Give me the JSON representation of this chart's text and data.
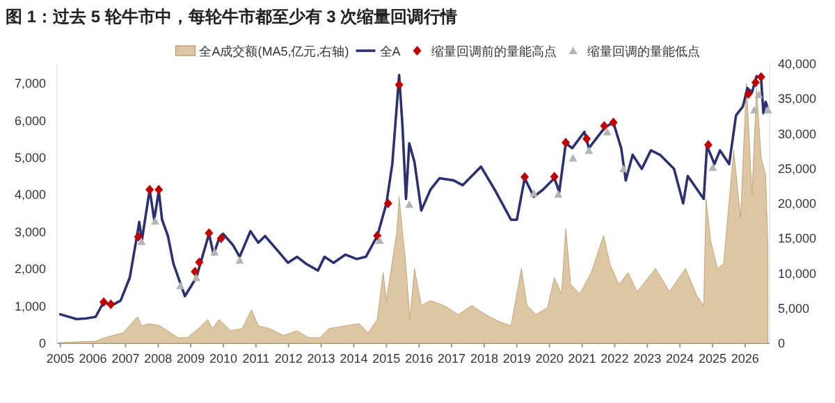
{
  "chart_data": {
    "type": "line",
    "title": "图 1：过去 5 轮牛市中，每轮牛市都至少有 3 次缩量回调行情",
    "legend": "top",
    "grid": false,
    "xlim": [
      2004.9,
      2026.75
    ],
    "xticks": [
      2005,
      2006,
      2007,
      2008,
      2009,
      2010,
      2011,
      2012,
      2013,
      2014,
      2015,
      2016,
      2017,
      2018,
      2019,
      2020,
      2021,
      2022,
      2023,
      2024,
      2025,
      2026
    ],
    "ylim": [
      0,
      7530
    ],
    "yticks": [
      {
        "value": 0,
        "label": "0"
      },
      {
        "value": 1000,
        "label": "1,000"
      },
      {
        "value": 2000,
        "label": "2,000"
      },
      {
        "value": 3000,
        "label": "3,000"
      },
      {
        "value": 4000,
        "label": "4,000"
      },
      {
        "value": 5000,
        "label": "5,000"
      },
      {
        "value": 6000,
        "label": "6,000"
      },
      {
        "value": 7000,
        "label": "7,000"
      }
    ],
    "y2lim": [
      0,
      40000
    ],
    "y2ticks": [
      {
        "value": 0,
        "label": "0"
      },
      {
        "value": 5000,
        "label": "5,000"
      },
      {
        "value": 10000,
        "label": "10,000"
      },
      {
        "value": 15000,
        "label": "15,000"
      },
      {
        "value": 20000,
        "label": "20,000"
      },
      {
        "value": 25000,
        "label": "25,000"
      },
      {
        "value": 30000,
        "label": "30,000"
      },
      {
        "value": 35000,
        "label": "35,000"
      },
      {
        "value": 40000,
        "label": "40,000"
      }
    ],
    "series": [
      {
        "name": "全A成交额(MA5,亿元,右轴)",
        "type": "area",
        "axis": "y2",
        "color": "#dcc6a3",
        "x": [
          2005,
          2006.08,
          2006.36,
          2006.92,
          2007.37,
          2007.49,
          2007.74,
          2008.05,
          2008.61,
          2008.89,
          2009.24,
          2009.52,
          2009.66,
          2009.87,
          2010.22,
          2010.58,
          2010.86,
          2011.07,
          2011.42,
          2011.84,
          2012.26,
          2012.61,
          2012.96,
          2013.24,
          2013.74,
          2014.16,
          2014.44,
          2014.72,
          2014.9,
          2015.0,
          2015.32,
          2015.39,
          2015.49,
          2015.58,
          2015.72,
          2015.86,
          2016.07,
          2016.35,
          2016.77,
          2017.2,
          2017.62,
          2018.04,
          2018.46,
          2018.82,
          2019.14,
          2019.31,
          2019.59,
          2019.94,
          2020.15,
          2020.37,
          2020.5,
          2020.65,
          2020.93,
          2021.28,
          2021.66,
          2021.85,
          2022.13,
          2022.41,
          2022.69,
          2023.25,
          2023.68,
          2024.17,
          2024.52,
          2024.73,
          2024.8,
          2024.94,
          2025.15,
          2025.34,
          2025.65,
          2025.86,
          2026.04,
          2026.21,
          2026.35,
          2026.49,
          2026.63,
          2026.7
        ],
        "values": [
          100,
          300,
          800,
          1500,
          3800,
          2500,
          2800,
          2500,
          800,
          800,
          2100,
          3400,
          2100,
          3400,
          1800,
          2100,
          4800,
          2500,
          2100,
          1100,
          1800,
          800,
          800,
          2100,
          2500,
          2800,
          1500,
          3400,
          10100,
          6100,
          16000,
          21000,
          16000,
          12100,
          3400,
          10700,
          5400,
          6100,
          5400,
          4100,
          5400,
          4100,
          3100,
          2500,
          10700,
          5400,
          4100,
          5100,
          9400,
          7100,
          16400,
          8400,
          7100,
          10100,
          15400,
          11400,
          8400,
          10100,
          7400,
          10700,
          7400,
          10700,
          6800,
          5400,
          20700,
          14700,
          10700,
          11400,
          27600,
          18000,
          37200,
          21300,
          36500,
          26600,
          24000,
          13400
        ]
      },
      {
        "name": "全A",
        "color": "#2b3170",
        "x": [
          2005.0,
          2005.5,
          2005.8,
          2006.08,
          2006.33,
          2006.57,
          2006.85,
          2007.13,
          2007.35,
          2007.42,
          2007.5,
          2007.74,
          2007.88,
          2008.02,
          2008.12,
          2008.3,
          2008.47,
          2008.82,
          2009.17,
          2009.56,
          2009.7,
          2009.87,
          2009.99,
          2010.3,
          2010.5,
          2010.83,
          2011.07,
          2011.28,
          2011.7,
          2011.98,
          2012.26,
          2012.54,
          2012.9,
          2013.1,
          2013.38,
          2013.74,
          2014.09,
          2014.37,
          2014.72,
          2015.0,
          2015.18,
          2015.39,
          2015.49,
          2015.6,
          2015.7,
          2015.86,
          2016.07,
          2016.35,
          2016.63,
          2017.06,
          2017.34,
          2017.9,
          2018.32,
          2018.82,
          2019.0,
          2019.24,
          2019.52,
          2019.8,
          2020.15,
          2020.3,
          2020.5,
          2020.7,
          2021.07,
          2021.21,
          2021.7,
          2021.96,
          2022.2,
          2022.34,
          2022.55,
          2022.83,
          2023.11,
          2023.39,
          2023.82,
          2024.1,
          2024.24,
          2024.73,
          2024.83,
          2025.06,
          2025.23,
          2025.51,
          2025.72,
          2025.93,
          2026.07,
          2026.21,
          2026.35,
          2026.49,
          2026.56,
          2026.63,
          2026.7
        ],
        "values": [
          780,
          650,
          670,
          710,
          1110,
          1020,
          1150,
          1770,
          2890,
          3270,
          2770,
          4140,
          3330,
          4110,
          3330,
          2890,
          2140,
          1270,
          1770,
          2950,
          2390,
          2830,
          2950,
          2640,
          2330,
          3020,
          2710,
          2890,
          2460,
          2170,
          2330,
          2140,
          1960,
          2330,
          2170,
          2390,
          2270,
          2330,
          2890,
          3770,
          4830,
          7230,
          5890,
          3890,
          5390,
          4890,
          3580,
          4140,
          4450,
          4390,
          4260,
          4760,
          4140,
          3330,
          3330,
          4450,
          3950,
          4140,
          4450,
          4080,
          5390,
          5260,
          5700,
          5260,
          5820,
          5950,
          5260,
          4390,
          5080,
          4700,
          5200,
          5080,
          4700,
          3770,
          4510,
          3890,
          5320,
          4830,
          5200,
          4830,
          6140,
          6380,
          6880,
          6760,
          7200,
          7130,
          6200,
          6510,
          6320
        ]
      },
      {
        "name": "缩量回调前的量能高点",
        "type": "scatter",
        "marker": "diamond",
        "color": "#c00000",
        "x": [
          2006.33,
          2006.55,
          2007.39,
          2007.74,
          2008.02,
          2009.13,
          2009.26,
          2009.56,
          2009.93,
          2014.72,
          2015.05,
          2015.39,
          2019.24,
          2020.15,
          2020.5,
          2021.14,
          2021.68,
          2021.96,
          2024.87,
          2026.1,
          2026.32,
          2026.49
        ],
        "values": [
          1110,
          1050,
          2870,
          4140,
          4140,
          1930,
          2180,
          2970,
          2830,
          2900,
          3770,
          6970,
          4480,
          4490,
          5410,
          5510,
          5860,
          5950,
          5350,
          6720,
          7030,
          7180
        ]
      },
      {
        "name": "缩量回调的量能低点",
        "type": "scatter",
        "marker": "triangle",
        "color": "#b4b4b4",
        "x": [
          2007.49,
          2007.91,
          2008.68,
          2009.17,
          2009.73,
          2010.5,
          2014.79,
          2015.7,
          2019.52,
          2020.27,
          2020.72,
          2021.21,
          2021.77,
          2022.27,
          2025.01,
          2026.28,
          2026.42,
          2026.7
        ],
        "values": [
          2740,
          3290,
          1550,
          1770,
          2460,
          2240,
          2770,
          3740,
          4040,
          4020,
          4990,
          5200,
          5700,
          4700,
          4740,
          6290,
          6700,
          6290
        ]
      }
    ]
  }
}
